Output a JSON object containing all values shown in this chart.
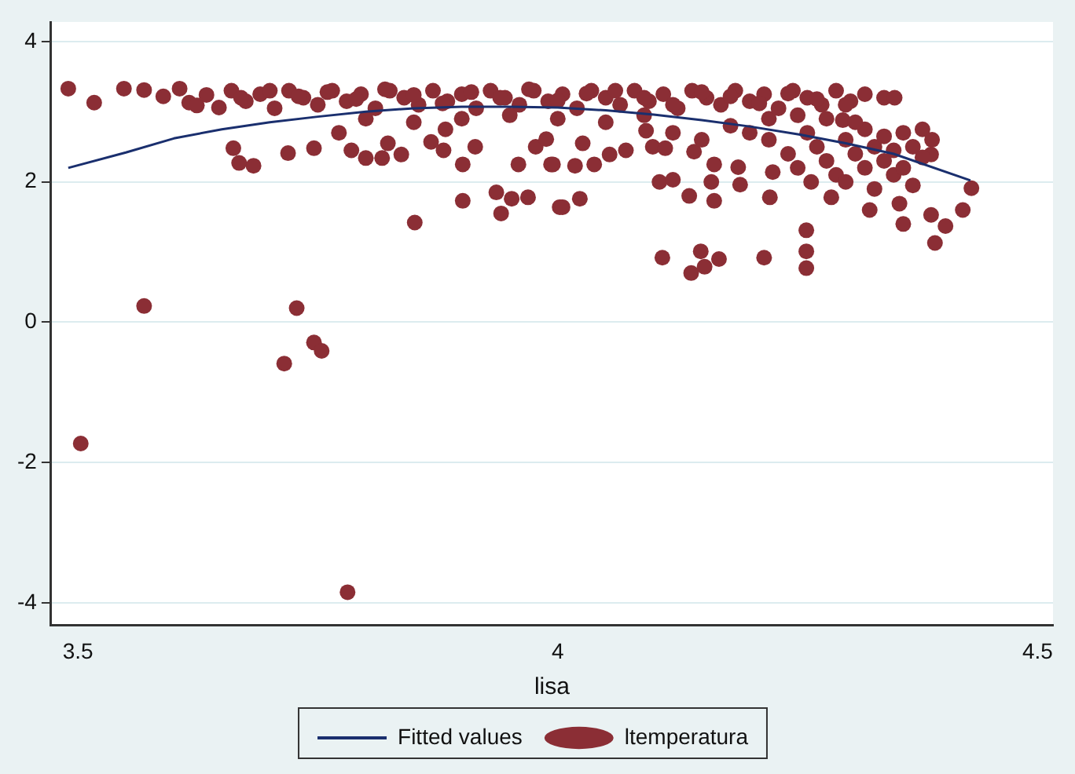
{
  "chart_data": {
    "type": "scatter",
    "xlabel": "lisa",
    "xlim": [
      3.472,
      4.516
    ],
    "ylim": [
      -4.32,
      4.28
    ],
    "xticks": [
      3.5,
      4,
      4.5
    ],
    "yticks": [
      -4,
      -2,
      0,
      2,
      4
    ],
    "grid": "y",
    "legend": "bottom",
    "series": [
      {
        "name": "Fitted values",
        "type": "line",
        "marker": "none",
        "color": "#1a2f6e",
        "x": [
          3.49,
          3.55,
          3.6,
          3.65,
          3.7,
          3.75,
          3.8,
          3.85,
          3.9,
          3.95,
          4.0,
          4.05,
          4.1,
          4.15,
          4.2,
          4.25,
          4.3,
          4.35,
          4.43
        ],
        "values": [
          2.2,
          2.42,
          2.62,
          2.75,
          2.85,
          2.93,
          3.0,
          3.05,
          3.07,
          3.07,
          3.06,
          3.02,
          2.96,
          2.88,
          2.79,
          2.68,
          2.55,
          2.4,
          2.02
        ]
      },
      {
        "name": "ltemperatura",
        "type": "scatter",
        "marker": "circle",
        "color": "#8b2e35",
        "x": [
          3.503,
          3.569,
          3.728,
          3.715,
          3.746,
          3.754,
          3.781,
          4.109,
          4.139,
          4.149,
          4.153,
          4.168,
          4.215,
          4.259,
          4.259,
          4.259,
          4.106,
          3.49,
          3.517,
          3.548,
          3.569,
          3.589,
          3.606,
          3.616,
          3.624,
          3.634,
          3.647,
          3.662,
          3.668,
          3.683,
          3.719,
          3.746,
          3.772,
          3.785,
          3.8,
          3.817,
          3.823,
          3.837,
          3.851,
          3.868,
          3.881,
          3.883,
          3.901,
          3.901,
          3.914,
          3.936,
          3.941,
          3.952,
          3.969,
          3.959,
          3.977,
          3.988,
          3.993,
          4.002,
          4.005,
          4.023,
          3.995,
          4.018,
          4.038,
          4.054,
          4.071,
          4.026,
          4.092,
          4.099,
          4.112,
          4.12,
          4.137,
          4.163,
          4.16,
          4.19,
          4.221,
          4.142,
          4.163,
          4.188,
          4.224,
          4.264,
          4.285,
          4.325,
          4.36,
          4.356,
          4.393,
          4.389,
          4.404,
          4.422,
          4.431,
          4.389,
          4.34,
          4.351,
          4.297,
          4.22,
          4.24,
          4.25,
          4.26,
          4.27,
          4.28,
          4.29,
          4.3,
          4.3,
          4.31,
          4.32,
          4.32,
          4.33,
          4.33,
          4.34,
          4.34,
          4.35,
          4.35,
          4.36,
          4.36,
          4.37,
          4.37,
          4.38,
          4.38,
          4.39,
          4.31,
          4.28,
          4.25,
          4.22,
          4.2,
          4.18,
          4.15,
          4.12,
          4.09,
          4.05,
          4.0,
          3.95,
          3.9,
          3.85,
          3.8,
          3.66,
          3.675,
          3.69,
          3.705,
          3.72,
          3.735,
          3.75,
          3.765,
          3.78,
          3.795,
          3.81,
          3.825,
          3.84,
          3.855,
          3.87,
          3.885,
          3.9,
          3.915,
          3.93,
          3.945,
          3.96,
          3.975,
          3.99,
          4.005,
          4.02,
          4.035,
          4.05,
          4.065,
          4.08,
          4.095,
          4.11,
          4.125,
          4.14,
          4.155,
          4.17,
          4.185,
          4.2,
          4.215,
          4.23,
          4.245,
          4.26,
          4.275,
          4.29,
          4.305,
          4.32,
          3.67,
          3.7,
          3.73,
          3.76,
          3.79,
          3.82,
          3.85,
          3.88,
          3.91,
          3.94,
          3.97,
          4.0,
          4.03,
          4.06,
          4.09,
          4.12,
          4.15,
          4.18,
          4.21,
          4.24,
          4.27,
          4.3
        ],
        "values": [
          -1.73,
          0.23,
          0.2,
          -0.59,
          -0.29,
          -0.41,
          -3.85,
          0.92,
          0.7,
          1.01,
          0.79,
          0.9,
          0.92,
          1.31,
          1.01,
          0.77,
          2.0,
          3.33,
          3.13,
          3.33,
          3.31,
          3.22,
          3.33,
          3.13,
          3.09,
          3.24,
          3.06,
          2.48,
          2.27,
          2.23,
          2.41,
          2.48,
          2.7,
          2.45,
          2.34,
          2.34,
          2.55,
          2.39,
          1.42,
          2.57,
          2.45,
          2.75,
          2.25,
          1.73,
          2.5,
          1.85,
          1.55,
          1.76,
          1.78,
          2.25,
          2.5,
          2.61,
          2.25,
          1.64,
          1.64,
          1.76,
          2.25,
          2.23,
          2.25,
          2.39,
          2.45,
          2.55,
          2.73,
          2.5,
          2.48,
          2.03,
          1.8,
          1.73,
          2.0,
          1.96,
          1.78,
          2.43,
          2.25,
          2.21,
          2.14,
          2.0,
          1.78,
          1.6,
          1.4,
          1.69,
          1.13,
          1.53,
          1.37,
          1.6,
          1.91,
          2.39,
          3.2,
          3.2,
          2.88,
          2.6,
          2.4,
          2.2,
          2.7,
          2.5,
          2.3,
          2.1,
          2.6,
          2.0,
          2.4,
          2.2,
          2.75,
          2.5,
          1.9,
          2.3,
          2.65,
          2.1,
          2.45,
          2.7,
          2.2,
          2.5,
          1.95,
          2.35,
          2.75,
          2.6,
          2.85,
          2.9,
          2.95,
          2.9,
          2.7,
          2.8,
          2.6,
          2.7,
          2.95,
          2.85,
          2.9,
          2.95,
          2.9,
          2.85,
          2.9,
          3.3,
          3.15,
          3.25,
          3.05,
          3.3,
          3.2,
          3.1,
          3.3,
          3.15,
          3.25,
          3.05,
          3.3,
          3.2,
          3.1,
          3.3,
          3.15,
          3.25,
          3.05,
          3.3,
          3.2,
          3.1,
          3.3,
          3.15,
          3.25,
          3.05,
          3.3,
          3.2,
          3.1,
          3.3,
          3.15,
          3.25,
          3.05,
          3.3,
          3.2,
          3.1,
          3.3,
          3.15,
          3.25,
          3.05,
          3.3,
          3.2,
          3.1,
          3.3,
          3.15,
          3.25,
          3.2,
          3.3,
          3.22,
          3.28,
          3.18,
          3.32,
          3.24,
          3.12,
          3.28,
          3.2,
          3.32,
          3.16,
          3.26,
          3.3,
          3.2,
          3.1,
          3.28,
          3.22,
          3.12,
          3.26,
          3.18,
          3.1
        ]
      }
    ]
  }
}
